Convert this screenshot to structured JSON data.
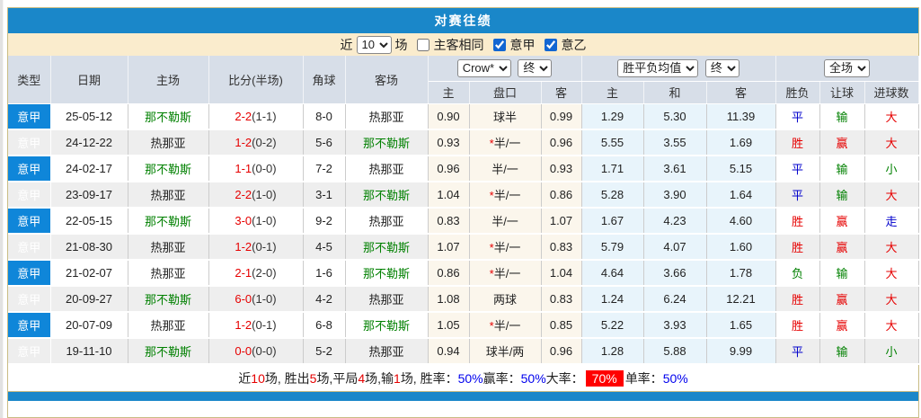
{
  "title": "对赛往绩",
  "filter": {
    "near_label": "近",
    "games_select": "10",
    "games_suffix": "场",
    "same_venue_label": "主客相同",
    "same_venue_checked": false,
    "serie_a_label": "意甲",
    "serie_a_checked": true,
    "serie_b_label": "意乙",
    "serie_b_checked": true
  },
  "header": {
    "col_type": "类型",
    "col_date": "日期",
    "col_home": "主场",
    "col_score": "比分(半场)",
    "col_corner": "角球",
    "col_away": "客场",
    "odds_group": {
      "select1": "Crow*",
      "select2": "终",
      "col_home": "主",
      "col_handicap": "盘口",
      "col_away": "客"
    },
    "avg_group": {
      "select1": "胜平负均值",
      "select2": "终",
      "col_home": "主",
      "col_draw": "和",
      "col_away": "客"
    },
    "result_group": {
      "select1": "全场",
      "col_result": "胜负",
      "col_handicap": "让球",
      "col_goals": "进球数"
    }
  },
  "rows": [
    {
      "type": "意甲",
      "date": "25-05-12",
      "home": "那不勒斯",
      "home_c": "green",
      "score": "2-2",
      "half": "(1-1)",
      "corner": "8-0",
      "away": "热那亚",
      "away_c": "black",
      "o1": "0.90",
      "star": "",
      "hcap": "球半",
      "o2": "0.99",
      "a1": "1.29",
      "a2": "5.30",
      "a3": "11.39",
      "r1": "平",
      "r1c": "blue",
      "r2": "输",
      "r2c": "green",
      "r3": "大",
      "r3c": "red"
    },
    {
      "type": "意甲",
      "date": "24-12-22",
      "home": "热那亚",
      "home_c": "black",
      "score": "1-2",
      "half": "(0-2)",
      "corner": "5-6",
      "away": "那不勒斯",
      "away_c": "green",
      "o1": "0.93",
      "star": "*",
      "hcap": "半/一",
      "o2": "0.96",
      "a1": "5.55",
      "a2": "3.55",
      "a3": "1.69",
      "r1": "胜",
      "r1c": "red",
      "r2": "赢",
      "r2c": "red",
      "r3": "大",
      "r3c": "red"
    },
    {
      "type": "意甲",
      "date": "24-02-17",
      "home": "那不勒斯",
      "home_c": "green",
      "score": "1-1",
      "half": "(0-0)",
      "corner": "7-2",
      "away": "热那亚",
      "away_c": "black",
      "o1": "0.96",
      "star": "",
      "hcap": "半/一",
      "o2": "0.93",
      "a1": "1.71",
      "a2": "3.61",
      "a3": "5.15",
      "r1": "平",
      "r1c": "blue",
      "r2": "输",
      "r2c": "green",
      "r3": "小",
      "r3c": "green"
    },
    {
      "type": "意甲",
      "date": "23-09-17",
      "home": "热那亚",
      "home_c": "black",
      "score": "2-2",
      "half": "(1-0)",
      "corner": "3-1",
      "away": "那不勒斯",
      "away_c": "green",
      "o1": "1.04",
      "star": "*",
      "hcap": "半/一",
      "o2": "0.86",
      "a1": "5.28",
      "a2": "3.90",
      "a3": "1.64",
      "r1": "平",
      "r1c": "blue",
      "r2": "输",
      "r2c": "green",
      "r3": "大",
      "r3c": "red"
    },
    {
      "type": "意甲",
      "date": "22-05-15",
      "home": "那不勒斯",
      "home_c": "green",
      "score": "3-0",
      "half": "(1-0)",
      "corner": "9-2",
      "away": "热那亚",
      "away_c": "black",
      "o1": "0.83",
      "star": "",
      "hcap": "半/一",
      "o2": "1.07",
      "a1": "1.67",
      "a2": "4.23",
      "a3": "4.60",
      "r1": "胜",
      "r1c": "red",
      "r2": "赢",
      "r2c": "red",
      "r3": "走",
      "r3c": "blue"
    },
    {
      "type": "意甲",
      "date": "21-08-30",
      "home": "热那亚",
      "home_c": "black",
      "score": "1-2",
      "half": "(0-1)",
      "corner": "4-5",
      "away": "那不勒斯",
      "away_c": "green",
      "o1": "1.07",
      "star": "*",
      "hcap": "半/一",
      "o2": "0.83",
      "a1": "5.79",
      "a2": "4.07",
      "a3": "1.60",
      "r1": "胜",
      "r1c": "red",
      "r2": "赢",
      "r2c": "red",
      "r3": "大",
      "r3c": "red"
    },
    {
      "type": "意甲",
      "date": "21-02-07",
      "home": "热那亚",
      "home_c": "black",
      "score": "2-1",
      "half": "(2-0)",
      "corner": "1-6",
      "away": "那不勒斯",
      "away_c": "green",
      "o1": "0.86",
      "star": "*",
      "hcap": "半/一",
      "o2": "1.04",
      "a1": "4.64",
      "a2": "3.66",
      "a3": "1.78",
      "r1": "负",
      "r1c": "green",
      "r2": "输",
      "r2c": "green",
      "r3": "大",
      "r3c": "red"
    },
    {
      "type": "意甲",
      "date": "20-09-27",
      "home": "那不勒斯",
      "home_c": "green",
      "score": "6-0",
      "half": "(1-0)",
      "corner": "4-2",
      "away": "热那亚",
      "away_c": "black",
      "o1": "1.08",
      "star": "",
      "hcap": "两球",
      "o2": "0.83",
      "a1": "1.24",
      "a2": "6.24",
      "a3": "12.21",
      "r1": "胜",
      "r1c": "red",
      "r2": "赢",
      "r2c": "red",
      "r3": "大",
      "r3c": "red"
    },
    {
      "type": "意甲",
      "date": "20-07-09",
      "home": "热那亚",
      "home_c": "black",
      "score": "1-2",
      "half": "(0-1)",
      "corner": "6-8",
      "away": "那不勒斯",
      "away_c": "green",
      "o1": "1.05",
      "star": "*",
      "hcap": "半/一",
      "o2": "0.85",
      "a1": "5.22",
      "a2": "3.93",
      "a3": "1.65",
      "r1": "胜",
      "r1c": "red",
      "r2": "赢",
      "r2c": "red",
      "r3": "大",
      "r3c": "red"
    },
    {
      "type": "意甲",
      "date": "19-11-10",
      "home": "那不勒斯",
      "home_c": "green",
      "score": "0-0",
      "half": "(0-0)",
      "corner": "5-2",
      "away": "热那亚",
      "away_c": "black",
      "o1": "0.94",
      "star": "",
      "hcap": "球半/两",
      "o2": "0.96",
      "a1": "1.28",
      "a2": "5.88",
      "a3": "9.99",
      "r1": "平",
      "r1c": "blue",
      "r2": "输",
      "r2c": "green",
      "r3": "小",
      "r3c": "green"
    }
  ],
  "footer_segments": [
    {
      "text": "近 ",
      "style": "plain"
    },
    {
      "text": "10",
      "style": "red"
    },
    {
      "text": " 场, 胜出 ",
      "style": "plain"
    },
    {
      "text": "5",
      "style": "red"
    },
    {
      "text": " 场,平局 ",
      "style": "plain"
    },
    {
      "text": "4",
      "style": "red"
    },
    {
      "text": " 场,输 ",
      "style": "plain"
    },
    {
      "text": "1",
      "style": "red"
    },
    {
      "text": " 场, 胜率： ",
      "style": "plain"
    },
    {
      "text": "50%",
      "style": "blue"
    },
    {
      "text": " 赢率： ",
      "style": "plain"
    },
    {
      "text": "50%",
      "style": "blue"
    },
    {
      "text": " 大率： ",
      "style": "plain"
    },
    {
      "text": "70%",
      "style": "badge"
    },
    {
      "text": " 单率： ",
      "style": "plain"
    },
    {
      "text": "50%",
      "style": "blue"
    }
  ],
  "colors": {
    "accent_blue": "#1a87c9",
    "badge_blue": "#0f86d9",
    "header_bg": "#d7dee8",
    "filter_cream": "#faeccd",
    "odds_bg": "#fbf6ec",
    "avg_bg": "#e8f4fb",
    "win_red": "#e60000",
    "lose_green": "#008000",
    "draw_blue": "#0000cc"
  }
}
